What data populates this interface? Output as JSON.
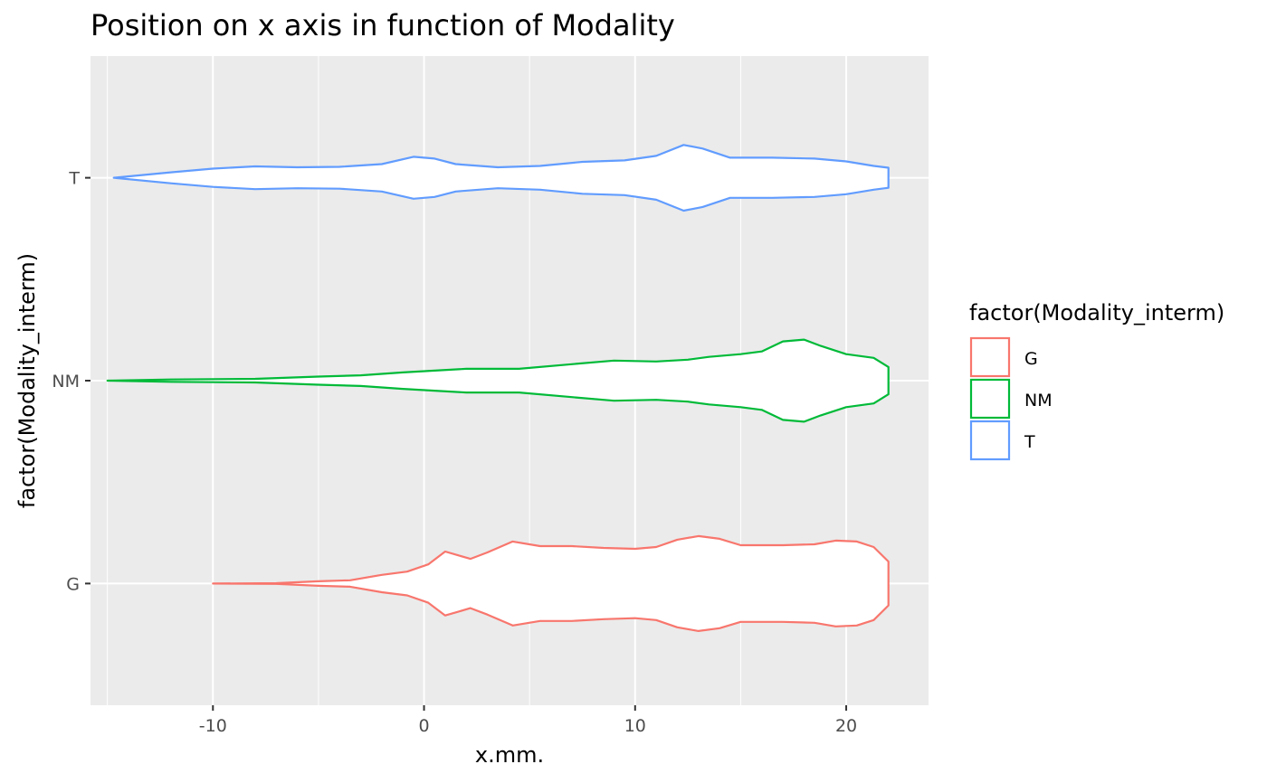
{
  "chart_data": {
    "type": "violin",
    "title": "Position on x axis in function of Modality",
    "xlabel": "x.mm.",
    "ylabel": "factor(Modality_interm)",
    "xlim": [
      -15.8,
      23.9
    ],
    "x_ticks": [
      -10,
      0,
      10,
      20
    ],
    "x_tick_labels": [
      "-10",
      "0",
      "10",
      "20"
    ],
    "x_minor_ticks": [
      -15,
      -5,
      5,
      15
    ],
    "categories": [
      "G",
      "NM",
      "T"
    ],
    "grid": true,
    "legend": {
      "title": "factor(Modality_interm)",
      "position": "right",
      "entries": [
        "G",
        "NM",
        "T"
      ]
    },
    "colors": {
      "G": "#F8766D",
      "NM": "#00BA38",
      "T": "#619CFF",
      "panel": "#EBEBEB",
      "grid": "#FFFFFF"
    },
    "series": [
      {
        "name": "G",
        "category": "G",
        "half_width_scale": 0.45,
        "density": [
          [
            -10.0,
            0.0
          ],
          [
            -7.0,
            0.004
          ],
          [
            -5.0,
            0.025
          ],
          [
            -3.5,
            0.035
          ],
          [
            -2.0,
            0.095
          ],
          [
            -0.8,
            0.13
          ],
          [
            0.2,
            0.21
          ],
          [
            1.0,
            0.35
          ],
          [
            1.6,
            0.31
          ],
          [
            2.2,
            0.27
          ],
          [
            3.0,
            0.34
          ],
          [
            4.2,
            0.46
          ],
          [
            5.5,
            0.41
          ],
          [
            7.0,
            0.41
          ],
          [
            8.5,
            0.39
          ],
          [
            10.0,
            0.38
          ],
          [
            11.0,
            0.4
          ],
          [
            12.0,
            0.48
          ],
          [
            13.0,
            0.52
          ],
          [
            14.0,
            0.49
          ],
          [
            15.0,
            0.42
          ],
          [
            17.0,
            0.42
          ],
          [
            18.5,
            0.43
          ],
          [
            19.5,
            0.47
          ],
          [
            20.5,
            0.46
          ],
          [
            21.3,
            0.4
          ],
          [
            22.0,
            0.24
          ]
        ]
      },
      {
        "name": "NM",
        "category": "NM",
        "half_width_scale": 0.45,
        "density": [
          [
            -15.0,
            0.0
          ],
          [
            -12.0,
            0.013
          ],
          [
            -8.0,
            0.02
          ],
          [
            -5.0,
            0.045
          ],
          [
            -3.0,
            0.058
          ],
          [
            -1.0,
            0.09
          ],
          [
            0.5,
            0.11
          ],
          [
            2.0,
            0.13
          ],
          [
            4.5,
            0.13
          ],
          [
            7.0,
            0.18
          ],
          [
            9.0,
            0.22
          ],
          [
            11.0,
            0.21
          ],
          [
            12.5,
            0.23
          ],
          [
            13.5,
            0.26
          ],
          [
            15.0,
            0.29
          ],
          [
            16.0,
            0.32
          ],
          [
            17.0,
            0.43
          ],
          [
            18.0,
            0.45
          ],
          [
            18.8,
            0.38
          ],
          [
            20.0,
            0.29
          ],
          [
            21.3,
            0.25
          ],
          [
            22.0,
            0.15
          ]
        ]
      },
      {
        "name": "T",
        "category": "T",
        "half_width_scale": 0.45,
        "density": [
          [
            -14.7,
            0.0
          ],
          [
            -12.0,
            0.06
          ],
          [
            -10.0,
            0.1
          ],
          [
            -8.0,
            0.125
          ],
          [
            -6.0,
            0.115
          ],
          [
            -4.0,
            0.12
          ],
          [
            -2.0,
            0.15
          ],
          [
            -0.5,
            0.23
          ],
          [
            0.5,
            0.21
          ],
          [
            1.5,
            0.15
          ],
          [
            3.5,
            0.115
          ],
          [
            5.5,
            0.13
          ],
          [
            7.5,
            0.175
          ],
          [
            9.5,
            0.19
          ],
          [
            11.0,
            0.24
          ],
          [
            12.3,
            0.36
          ],
          [
            13.2,
            0.32
          ],
          [
            14.5,
            0.22
          ],
          [
            16.5,
            0.22
          ],
          [
            18.5,
            0.21
          ],
          [
            20.0,
            0.18
          ],
          [
            21.3,
            0.13
          ],
          [
            22.0,
            0.11
          ]
        ]
      }
    ]
  }
}
